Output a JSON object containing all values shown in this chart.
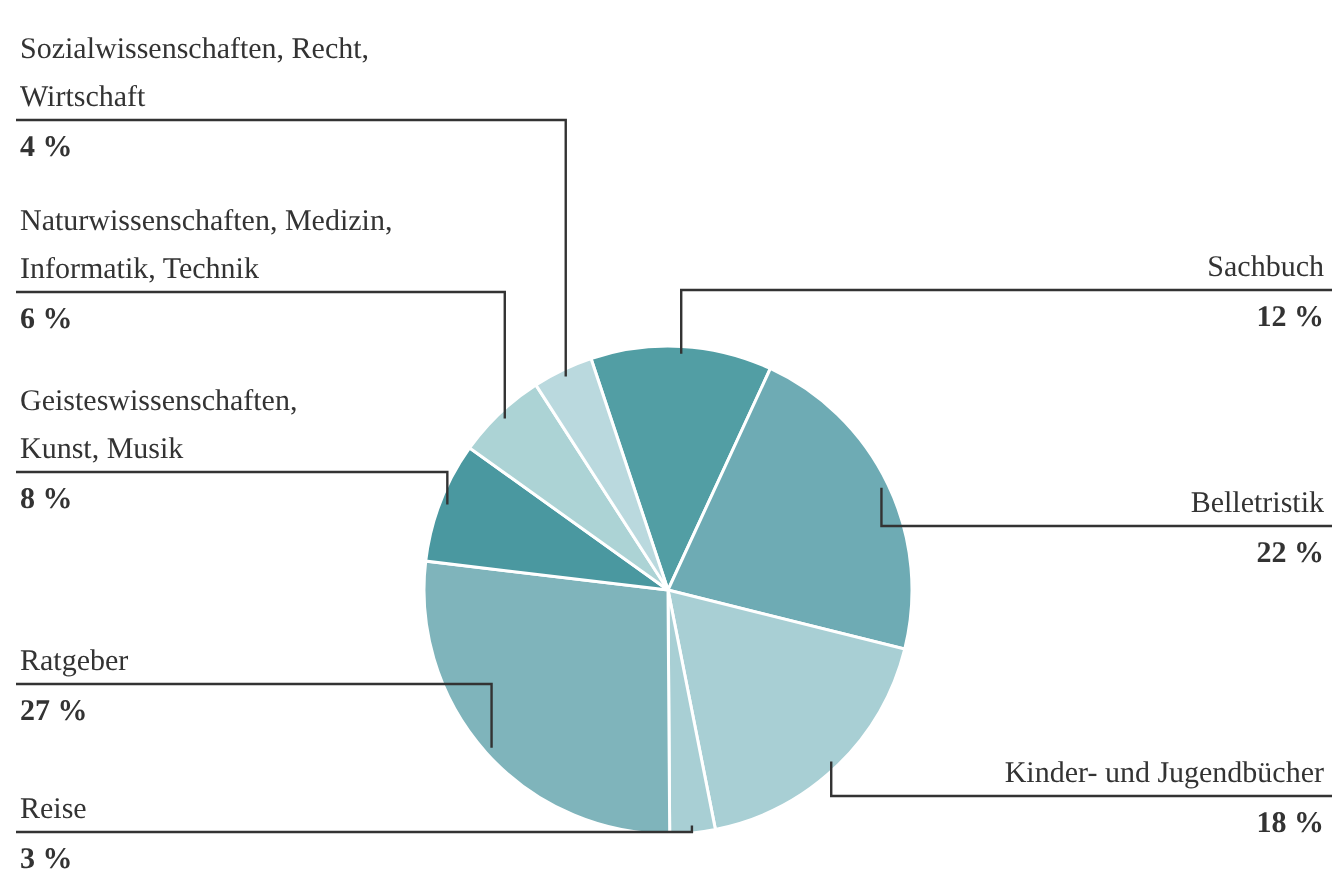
{
  "chart_data": {
    "type": "pie",
    "categories": [
      "Sachbuch",
      "Belletristik",
      "Kinder- und Jugendbücher",
      "Reise",
      "Ratgeber",
      "Geisteswissenschaften, Kunst, Musik",
      "Naturwissenschaften, Medizin, Informatik, Technik",
      "Sozialwissenschaften, Recht, Wirtschaft"
    ],
    "values": [
      12,
      22,
      18,
      3,
      27,
      8,
      6,
      4
    ],
    "value_labels": [
      "12 %",
      "22 %",
      "18 %",
      "3 %",
      "27 %",
      "8 %",
      "6 %",
      "4 %"
    ],
    "colors": [
      "#529ea4",
      "#6eabb4",
      "#a8cfd4",
      "#a8cfd4",
      "#7fb4bb",
      "#4a98a0",
      "#acd3d5",
      "#bad9de"
    ]
  }
}
